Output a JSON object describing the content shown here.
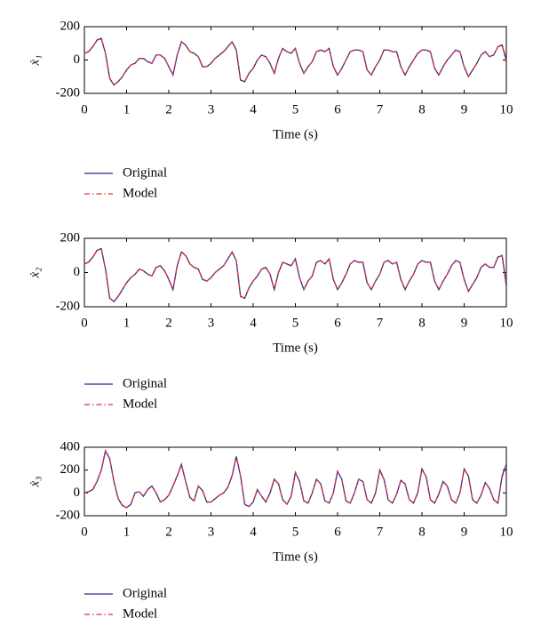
{
  "chart_data": [
    {
      "type": "line",
      "ylabel": "ẋ₁",
      "xlabel": "Time (s)",
      "legend": "below",
      "x": [
        0,
        0.1,
        0.2,
        0.3,
        0.4,
        0.5,
        0.6,
        0.7,
        0.8,
        0.9,
        1,
        1.1,
        1.2,
        1.3,
        1.4,
        1.5,
        1.6,
        1.7,
        1.8,
        1.9,
        2,
        2.1,
        2.2,
        2.3,
        2.4,
        2.5,
        2.6,
        2.7,
        2.8,
        2.9,
        3,
        3.1,
        3.2,
        3.3,
        3.4,
        3.5,
        3.6,
        3.7,
        3.8,
        3.9,
        4,
        4.1,
        4.2,
        4.3,
        4.4,
        4.5,
        4.6,
        4.7,
        4.8,
        4.9,
        5,
        5.1,
        5.2,
        5.3,
        5.4,
        5.5,
        5.6,
        5.7,
        5.8,
        5.9,
        6,
        6.1,
        6.2,
        6.3,
        6.4,
        6.5,
        6.6,
        6.7,
        6.8,
        6.9,
        7,
        7.1,
        7.2,
        7.3,
        7.4,
        7.5,
        7.6,
        7.7,
        7.8,
        7.9,
        8,
        8.1,
        8.2,
        8.3,
        8.4,
        8.5,
        8.6,
        8.7,
        8.8,
        8.9,
        9,
        9.1,
        9.2,
        9.3,
        9.4,
        9.5,
        9.6,
        9.7,
        9.8,
        9.9,
        10
      ],
      "series": [
        {
          "name": "Original",
          "color": "#2b2b8c",
          "dash": "solid",
          "values": [
            40,
            50,
            80,
            120,
            130,
            40,
            -110,
            -150,
            -130,
            -100,
            -60,
            -30,
            -20,
            10,
            10,
            -10,
            -20,
            30,
            30,
            10,
            -40,
            -90,
            30,
            110,
            90,
            50,
            40,
            20,
            -40,
            -40,
            -20,
            10,
            30,
            50,
            80,
            110,
            60,
            -120,
            -130,
            -80,
            -50,
            0,
            30,
            20,
            -20,
            -80,
            10,
            70,
            50,
            40,
            70,
            -20,
            -80,
            -40,
            -10,
            50,
            60,
            50,
            70,
            -40,
            -90,
            -50,
            0,
            50,
            60,
            60,
            50,
            -60,
            -90,
            -40,
            0,
            60,
            60,
            50,
            50,
            -40,
            -90,
            -40,
            0,
            40,
            60,
            60,
            50,
            -50,
            -90,
            -40,
            0,
            30,
            60,
            50,
            -40,
            -100,
            -60,
            -20,
            30,
            50,
            20,
            30,
            80,
            90,
            0
          ]
        },
        {
          "name": "Model",
          "color": "#e0303a",
          "dash": "dashdot",
          "values": [
            40,
            52,
            82,
            118,
            128,
            42,
            -108,
            -150,
            -128,
            -100,
            -58,
            -30,
            -18,
            10,
            8,
            -10,
            -18,
            30,
            30,
            12,
            -40,
            -88,
            32,
            110,
            88,
            50,
            40,
            20,
            -38,
            -40,
            -20,
            10,
            30,
            52,
            80,
            108,
            60,
            -118,
            -130,
            -80,
            -48,
            0,
            30,
            20,
            -20,
            -78,
            12,
            70,
            50,
            40,
            68,
            -20,
            -80,
            -40,
            -10,
            50,
            60,
            50,
            70,
            -38,
            -90,
            -50,
            0,
            50,
            60,
            60,
            50,
            -58,
            -90,
            -40,
            0,
            60,
            60,
            50,
            50,
            -40,
            -90,
            -40,
            0,
            40,
            60,
            60,
            50,
            -50,
            -90,
            -40,
            0,
            30,
            60,
            50,
            -40,
            -98,
            -60,
            -20,
            30,
            50,
            20,
            30,
            80,
            92,
            -20
          ]
        }
      ],
      "xlim": [
        0,
        10
      ],
      "xticks": [
        0,
        1,
        2,
        3,
        4,
        5,
        6,
        7,
        8,
        9,
        10
      ],
      "ylim": [
        -200,
        200
      ],
      "yticks": [
        -200,
        0,
        200
      ]
    },
    {
      "type": "line",
      "ylabel": "ẋ₂",
      "xlabel": "Time (s)",
      "legend": "below",
      "x": [
        0,
        0.1,
        0.2,
        0.3,
        0.4,
        0.5,
        0.6,
        0.7,
        0.8,
        0.9,
        1,
        1.1,
        1.2,
        1.3,
        1.4,
        1.5,
        1.6,
        1.7,
        1.8,
        1.9,
        2,
        2.1,
        2.2,
        2.3,
        2.4,
        2.5,
        2.6,
        2.7,
        2.8,
        2.9,
        3,
        3.1,
        3.2,
        3.3,
        3.4,
        3.5,
        3.6,
        3.7,
        3.8,
        3.9,
        4,
        4.1,
        4.2,
        4.3,
        4.4,
        4.5,
        4.6,
        4.7,
        4.8,
        4.9,
        5,
        5.1,
        5.2,
        5.3,
        5.4,
        5.5,
        5.6,
        5.7,
        5.8,
        5.9,
        6,
        6.1,
        6.2,
        6.3,
        6.4,
        6.5,
        6.6,
        6.7,
        6.8,
        6.9,
        7,
        7.1,
        7.2,
        7.3,
        7.4,
        7.5,
        7.6,
        7.7,
        7.8,
        7.9,
        8,
        8.1,
        8.2,
        8.3,
        8.4,
        8.5,
        8.6,
        8.7,
        8.8,
        8.9,
        9,
        9.1,
        9.2,
        9.3,
        9.4,
        9.5,
        9.6,
        9.7,
        9.8,
        9.9,
        10
      ],
      "series": [
        {
          "name": "Original",
          "color": "#2b2b8c",
          "dash": "solid",
          "values": [
            50,
            60,
            90,
            130,
            140,
            20,
            -150,
            -170,
            -140,
            -100,
            -60,
            -30,
            -10,
            20,
            10,
            -10,
            -20,
            30,
            40,
            10,
            -40,
            -100,
            40,
            120,
            100,
            50,
            30,
            20,
            -40,
            -50,
            -30,
            0,
            20,
            40,
            80,
            120,
            70,
            -140,
            -150,
            -90,
            -50,
            -20,
            20,
            30,
            -10,
            -100,
            0,
            60,
            50,
            40,
            80,
            -30,
            -100,
            -50,
            -20,
            60,
            70,
            50,
            80,
            -40,
            -100,
            -60,
            -10,
            50,
            70,
            60,
            60,
            -60,
            -100,
            -50,
            -10,
            60,
            70,
            50,
            60,
            -40,
            -100,
            -50,
            -10,
            50,
            70,
            60,
            60,
            -50,
            -100,
            -50,
            -10,
            40,
            70,
            60,
            -40,
            -110,
            -70,
            -30,
            30,
            50,
            30,
            30,
            90,
            100,
            -80
          ]
        },
        {
          "name": "Model",
          "color": "#e0303a",
          "dash": "dashdot",
          "values": [
            50,
            62,
            92,
            128,
            138,
            22,
            -148,
            -170,
            -138,
            -100,
            -58,
            -30,
            -10,
            20,
            10,
            -8,
            -20,
            30,
            38,
            10,
            -40,
            -98,
            42,
            120,
            98,
            50,
            30,
            20,
            -38,
            -50,
            -30,
            0,
            20,
            40,
            80,
            118,
            70,
            -138,
            -150,
            -90,
            -50,
            -20,
            20,
            30,
            -10,
            -98,
            2,
            60,
            50,
            40,
            78,
            -30,
            -100,
            -50,
            -20,
            60,
            70,
            50,
            80,
            -40,
            -98,
            -60,
            -10,
            50,
            70,
            60,
            60,
            -58,
            -100,
            -50,
            -10,
            60,
            70,
            50,
            60,
            -40,
            -100,
            -50,
            -10,
            50,
            70,
            60,
            60,
            -50,
            -100,
            -50,
            -10,
            40,
            70,
            60,
            -40,
            -108,
            -70,
            -30,
            30,
            50,
            30,
            30,
            90,
            98,
            -60
          ]
        }
      ],
      "xlim": [
        0,
        10
      ],
      "xticks": [
        0,
        1,
        2,
        3,
        4,
        5,
        6,
        7,
        8,
        9,
        10
      ],
      "ylim": [
        -200,
        200
      ],
      "yticks": [
        -200,
        0,
        200
      ]
    },
    {
      "type": "line",
      "ylabel": "ẋ₃",
      "xlabel": "Time (s)",
      "legend": "below",
      "x": [
        0,
        0.1,
        0.2,
        0.3,
        0.4,
        0.5,
        0.6,
        0.7,
        0.8,
        0.9,
        1,
        1.1,
        1.2,
        1.3,
        1.4,
        1.5,
        1.6,
        1.7,
        1.8,
        1.9,
        2,
        2.1,
        2.2,
        2.3,
        2.4,
        2.5,
        2.6,
        2.7,
        2.8,
        2.9,
        3,
        3.1,
        3.2,
        3.3,
        3.4,
        3.5,
        3.6,
        3.7,
        3.8,
        3.9,
        4,
        4.1,
        4.2,
        4.3,
        4.4,
        4.5,
        4.6,
        4.7,
        4.8,
        4.9,
        5,
        5.1,
        5.2,
        5.3,
        5.4,
        5.5,
        5.6,
        5.7,
        5.8,
        5.9,
        6,
        6.1,
        6.2,
        6.3,
        6.4,
        6.5,
        6.6,
        6.7,
        6.8,
        6.9,
        7,
        7.1,
        7.2,
        7.3,
        7.4,
        7.5,
        7.6,
        7.7,
        7.8,
        7.9,
        8,
        8.1,
        8.2,
        8.3,
        8.4,
        8.5,
        8.6,
        8.7,
        8.8,
        8.9,
        9,
        9.1,
        9.2,
        9.3,
        9.4,
        9.5,
        9.6,
        9.7,
        9.8,
        9.9,
        10
      ],
      "series": [
        {
          "name": "Original",
          "color": "#2b2b8c",
          "dash": "solid",
          "values": [
            0,
            10,
            30,
            100,
            200,
            370,
            300,
            100,
            -50,
            -110,
            -130,
            -100,
            0,
            10,
            -30,
            30,
            60,
            0,
            -80,
            -60,
            -20,
            60,
            150,
            250,
            100,
            -40,
            -70,
            60,
            20,
            -80,
            -80,
            -50,
            -20,
            0,
            50,
            150,
            320,
            150,
            -100,
            -120,
            -80,
            30,
            -30,
            -80,
            0,
            120,
            80,
            -60,
            -100,
            -30,
            180,
            100,
            -70,
            -90,
            0,
            120,
            80,
            -70,
            -90,
            0,
            190,
            120,
            -70,
            -90,
            0,
            120,
            100,
            -60,
            -90,
            0,
            200,
            120,
            -60,
            -90,
            -10,
            110,
            80,
            -60,
            -90,
            0,
            210,
            140,
            -60,
            -90,
            -10,
            100,
            60,
            -60,
            -90,
            0,
            210,
            150,
            -60,
            -90,
            -20,
            90,
            40,
            -60,
            -90,
            150,
            250
          ]
        },
        {
          "name": "Model",
          "color": "#e0303a",
          "dash": "dashdot",
          "values": [
            0,
            12,
            32,
            102,
            198,
            365,
            298,
            102,
            -48,
            -110,
            -128,
            -100,
            2,
            10,
            -28,
            30,
            58,
            0,
            -78,
            -60,
            -20,
            62,
            150,
            245,
            100,
            -38,
            -70,
            58,
            20,
            -78,
            -80,
            -50,
            -20,
            0,
            52,
            150,
            315,
            150,
            -98,
            -120,
            -80,
            28,
            -30,
            -78,
            0,
            118,
            80,
            -60,
            -98,
            -30,
            178,
            100,
            -70,
            -90,
            0,
            118,
            80,
            -70,
            -90,
            0,
            188,
            120,
            -70,
            -90,
            0,
            118,
            100,
            -60,
            -90,
            0,
            198,
            120,
            -60,
            -90,
            -10,
            110,
            80,
            -60,
            -90,
            0,
            208,
            140,
            -60,
            -90,
            -10,
            100,
            60,
            -60,
            -90,
            0,
            208,
            150,
            -60,
            -90,
            -20,
            90,
            40,
            -60,
            -90,
            140,
            235
          ]
        }
      ],
      "xlim": [
        0,
        10
      ],
      "xticks": [
        0,
        1,
        2,
        3,
        4,
        5,
        6,
        7,
        8,
        9,
        10
      ],
      "ylim": [
        -200,
        400
      ],
      "yticks": [
        -200,
        0,
        200,
        400
      ]
    }
  ]
}
